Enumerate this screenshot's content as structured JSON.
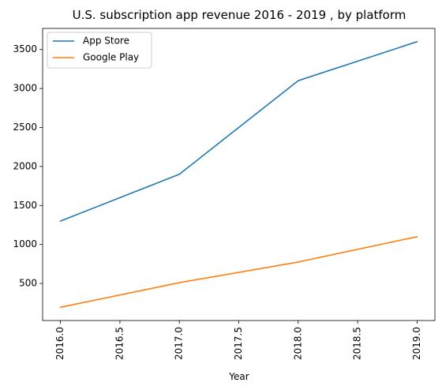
{
  "chart_data": {
    "type": "line",
    "title": "U.S. subscription app revenue 2016 - 2019 , by platform",
    "xlabel": "Year",
    "ylabel": "",
    "x": [
      2016,
      2017,
      2018,
      2019
    ],
    "series": [
      {
        "name": "App Store",
        "values": [
          1300,
          1900,
          3100,
          3600
        ],
        "color": "#1f77b4"
      },
      {
        "name": "Google Play",
        "values": [
          195,
          510,
          775,
          1100
        ],
        "color": "#ff7f0e"
      }
    ],
    "xlim": [
      2015.85,
      2019.15
    ],
    "ylim": [
      25,
      3770
    ],
    "xticks": [
      "2016.0",
      "2016.5",
      "2017.0",
      "2017.5",
      "2018.0",
      "2018.5",
      "2019.0"
    ],
    "yticks": [
      "500",
      "1000",
      "1500",
      "2000",
      "2500",
      "3000",
      "3500"
    ],
    "grid": false,
    "legend_position": "upper-left"
  }
}
